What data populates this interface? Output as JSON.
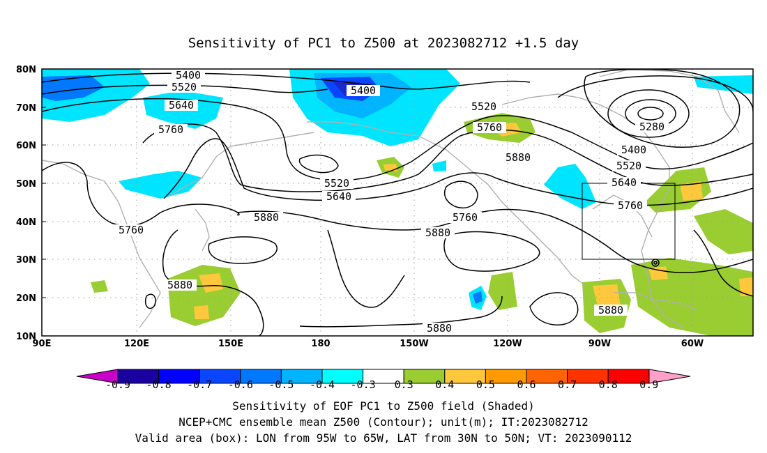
{
  "title": "Sensitivity of PC1 to Z500 at 2023082712 +1.5 day",
  "lon_labels": [
    "90E",
    "120E",
    "150E",
    "180",
    "150W",
    "120W",
    "90W",
    "60W"
  ],
  "lat_labels": [
    "80N",
    "70N",
    "60N",
    "50N",
    "40N",
    "30N",
    "20N",
    "10N"
  ],
  "contour_labels": [
    "5400",
    "5520",
    "5640",
    "5760",
    "5400",
    "5520",
    "5760",
    "5880",
    "5280",
    "5400",
    "5520",
    "5640",
    "5760",
    "5520",
    "5640",
    "5880",
    "5760",
    "5880",
    "5760",
    "5880",
    "5880",
    "5880"
  ],
  "colorbar": {
    "tick_labels": [
      "-0.9",
      "-0.8",
      "-0.7",
      "-0.6",
      "-0.5",
      "-0.4",
      "-0.3",
      "0.3",
      "0.4",
      "0.5",
      "0.6",
      "0.7",
      "0.8",
      "0.9"
    ],
    "colors": [
      "#1a00a0",
      "#0000ff",
      "#0a46ff",
      "#0078ff",
      "#00b4ff",
      "#00ffff",
      "#ffffff",
      "#9acd32",
      "#ffc83c",
      "#ff9b00",
      "#ff6400",
      "#ff3200",
      "#ff0000"
    ],
    "low_end_color": "#c800c8",
    "high_end_color": "#ffa0c8"
  },
  "shading_colors": {
    "cyan": "#00e5ff",
    "light_blue": "#00b4ff",
    "blue": "#0a46ff",
    "dark_blue": "#1a2ad0",
    "green": "#9acd32",
    "yellow": "#ffc83c",
    "orange": "#ff9b00"
  },
  "caption": [
    "Sensitivity of EOF PC1 to Z500 field (Shaded)",
    "NCEP+CMC ensemble mean Z500 (Contour); unit(m); IT:2023082712",
    "Valid area (box): LON from 95W to 65W, LAT from 30N to 50N; VT: 2023090112"
  ]
}
